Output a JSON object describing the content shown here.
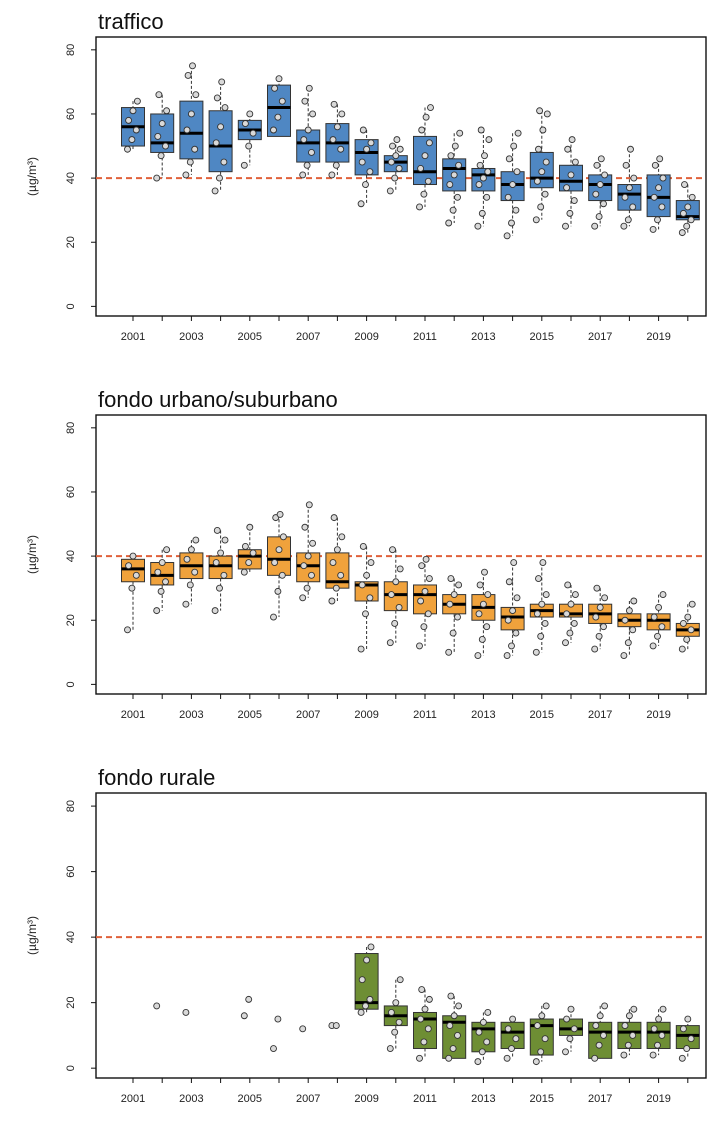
{
  "chart_data": [
    {
      "type": "box",
      "title": "traffico",
      "ylabel": "(µg/m³)",
      "yticks": [
        0,
        20,
        40,
        60,
        80
      ],
      "ylim": [
        -3,
        84
      ],
      "x_tick_labels": [
        "2001",
        "2003",
        "2005",
        "2007",
        "2009",
        "2011",
        "2013",
        "2015",
        "2017",
        "2019"
      ],
      "limit_line": 40,
      "colors": {
        "box": "#4f87c3",
        "limit": "#e0603a"
      },
      "categories": [
        2001,
        2002,
        2003,
        2004,
        2005,
        2006,
        2007,
        2008,
        2009,
        2010,
        2011,
        2012,
        2013,
        2014,
        2015,
        2016,
        2017,
        2018,
        2019,
        2020
      ],
      "boxes": [
        {
          "q1": 50,
          "median": 56,
          "q3": 62,
          "points": [
            49,
            52,
            55,
            58,
            61,
            64
          ]
        },
        {
          "q1": 48,
          "median": 51,
          "q3": 60,
          "points": [
            40,
            47,
            50,
            53,
            57,
            61,
            66
          ]
        },
        {
          "q1": 46,
          "median": 54,
          "q3": 64,
          "points": [
            41,
            45,
            49,
            55,
            60,
            66,
            72,
            75
          ]
        },
        {
          "q1": 42,
          "median": 50,
          "q3": 61,
          "points": [
            36,
            40,
            45,
            51,
            56,
            62,
            65,
            70
          ]
        },
        {
          "q1": 52,
          "median": 55,
          "q3": 58,
          "points": [
            44,
            50,
            54,
            57,
            60
          ]
        },
        {
          "q1": 53,
          "median": 62,
          "q3": 69,
          "points": [
            55,
            59,
            64,
            68,
            71
          ]
        },
        {
          "q1": 45,
          "median": 51,
          "q3": 55,
          "points": [
            41,
            44,
            48,
            52,
            55,
            60,
            64,
            68
          ]
        },
        {
          "q1": 45,
          "median": 51,
          "q3": 57,
          "points": [
            41,
            44,
            49,
            52,
            56,
            60,
            63
          ]
        },
        {
          "q1": 41,
          "median": 48,
          "q3": 52,
          "points": [
            32,
            38,
            42,
            45,
            49,
            51,
            55
          ]
        },
        {
          "q1": 42,
          "median": 45,
          "q3": 47,
          "points": [
            36,
            40,
            43,
            45,
            47,
            49,
            50,
            52
          ]
        },
        {
          "q1": 38,
          "median": 42,
          "q3": 53,
          "points": [
            31,
            35,
            39,
            43,
            47,
            51,
            55,
            59,
            62
          ]
        },
        {
          "q1": 36,
          "median": 43,
          "q3": 46,
          "points": [
            26,
            30,
            34,
            38,
            41,
            44,
            47,
            50,
            54
          ]
        },
        {
          "q1": 36,
          "median": 41,
          "q3": 43,
          "points": [
            25,
            29,
            34,
            38,
            40,
            42,
            44,
            47,
            52,
            55
          ]
        },
        {
          "q1": 33,
          "median": 38,
          "q3": 42,
          "points": [
            22,
            26,
            30,
            34,
            38,
            42,
            46,
            50,
            54
          ]
        },
        {
          "q1": 37,
          "median": 40,
          "q3": 48,
          "points": [
            27,
            31,
            35,
            39,
            42,
            45,
            49,
            55,
            60,
            61
          ]
        },
        {
          "q1": 36,
          "median": 39,
          "q3": 44,
          "points": [
            25,
            29,
            33,
            37,
            41,
            45,
            49,
            52
          ]
        },
        {
          "q1": 33,
          "median": 38,
          "q3": 41,
          "points": [
            25,
            28,
            32,
            35,
            38,
            41,
            44,
            46
          ]
        },
        {
          "q1": 30,
          "median": 35,
          "q3": 38,
          "points": [
            25,
            27,
            31,
            34,
            37,
            40,
            44,
            49
          ]
        },
        {
          "q1": 28,
          "median": 34,
          "q3": 41,
          "points": [
            24,
            27,
            31,
            34,
            37,
            40,
            44,
            46
          ]
        },
        {
          "q1": 27,
          "median": 28,
          "q3": 33,
          "points": [
            23,
            25,
            27,
            29,
            31,
            34,
            38
          ]
        }
      ]
    },
    {
      "type": "box",
      "title": "fondo urbano/suburbano",
      "ylabel": "(µg/m³)",
      "yticks": [
        0,
        20,
        40,
        60,
        80
      ],
      "ylim": [
        -3,
        84
      ],
      "x_tick_labels": [
        "2001",
        "2003",
        "2005",
        "2007",
        "2009",
        "2011",
        "2013",
        "2015",
        "2017",
        "2019"
      ],
      "limit_line": 40,
      "colors": {
        "box": "#f0a23c",
        "limit": "#e0603a"
      },
      "categories": [
        2001,
        2002,
        2003,
        2004,
        2005,
        2006,
        2007,
        2008,
        2009,
        2010,
        2011,
        2012,
        2013,
        2014,
        2015,
        2016,
        2017,
        2018,
        2019,
        2020
      ],
      "boxes": [
        {
          "q1": 32,
          "median": 36,
          "q3": 39,
          "points": [
            17,
            30,
            34,
            37,
            40
          ]
        },
        {
          "q1": 31,
          "median": 34,
          "q3": 38,
          "points": [
            23,
            29,
            32,
            35,
            38,
            42
          ]
        },
        {
          "q1": 33,
          "median": 37,
          "q3": 41,
          "points": [
            25,
            31,
            35,
            39,
            42,
            45
          ]
        },
        {
          "q1": 33,
          "median": 37,
          "q3": 40,
          "points": [
            23,
            30,
            34,
            38,
            41,
            45,
            48
          ]
        },
        {
          "q1": 36,
          "median": 40,
          "q3": 42,
          "points": [
            35,
            38,
            41,
            43,
            49
          ]
        },
        {
          "q1": 34,
          "median": 39,
          "q3": 46,
          "points": [
            21,
            29,
            34,
            38,
            42,
            46,
            52,
            53
          ]
        },
        {
          "q1": 32,
          "median": 37,
          "q3": 41,
          "points": [
            27,
            30,
            34,
            37,
            40,
            44,
            49,
            56
          ]
        },
        {
          "q1": 30,
          "median": 32,
          "q3": 41,
          "points": [
            26,
            30,
            34,
            38,
            42,
            46,
            52
          ]
        },
        {
          "q1": 26,
          "median": 31,
          "q3": 32,
          "points": [
            11,
            22,
            27,
            31,
            34,
            38,
            43
          ]
        },
        {
          "q1": 23,
          "median": 28,
          "q3": 32,
          "points": [
            13,
            19,
            24,
            28,
            32,
            36,
            42
          ]
        },
        {
          "q1": 22,
          "median": 28,
          "q3": 31,
          "points": [
            12,
            18,
            22,
            26,
            29,
            33,
            37,
            39
          ]
        },
        {
          "q1": 22,
          "median": 25,
          "q3": 28,
          "points": [
            10,
            16,
            21,
            25,
            28,
            31,
            33
          ]
        },
        {
          "q1": 20,
          "median": 24,
          "q3": 28,
          "points": [
            9,
            14,
            18,
            22,
            25,
            28,
            31,
            35
          ]
        },
        {
          "q1": 17,
          "median": 21,
          "q3": 24,
          "points": [
            9,
            12,
            16,
            20,
            23,
            27,
            32,
            38
          ]
        },
        {
          "q1": 21,
          "median": 23,
          "q3": 25,
          "points": [
            10,
            15,
            19,
            22,
            25,
            28,
            33,
            38
          ]
        },
        {
          "q1": 21,
          "median": 22,
          "q3": 25,
          "points": [
            13,
            16,
            19,
            22,
            25,
            28,
            31
          ]
        },
        {
          "q1": 19,
          "median": 22,
          "q3": 25,
          "points": [
            11,
            15,
            18,
            21,
            24,
            27,
            30
          ]
        },
        {
          "q1": 18,
          "median": 20,
          "q3": 22,
          "points": [
            9,
            13,
            17,
            20,
            23,
            26
          ]
        },
        {
          "q1": 17,
          "median": 20,
          "q3": 22,
          "points": [
            12,
            15,
            18,
            21,
            24,
            28
          ]
        },
        {
          "q1": 15,
          "median": 17,
          "q3": 19,
          "points": [
            11,
            14,
            17,
            19,
            21,
            25
          ]
        }
      ]
    },
    {
      "type": "box",
      "title": "fondo rurale",
      "ylabel": "(µg/m³)",
      "yticks": [
        0,
        20,
        40,
        60,
        80
      ],
      "ylim": [
        -3,
        84
      ],
      "x_tick_labels": [
        "2001",
        "2003",
        "2005",
        "2007",
        "2009",
        "2011",
        "2013",
        "2015",
        "2017",
        "2019"
      ],
      "limit_line": 40,
      "colors": {
        "box": "#6e8e34",
        "limit": "#e0603a"
      },
      "categories": [
        2001,
        2002,
        2003,
        2004,
        2005,
        2006,
        2007,
        2008,
        2009,
        2010,
        2011,
        2012,
        2013,
        2014,
        2015,
        2016,
        2017,
        2018,
        2019,
        2020
      ],
      "boxes": [
        null,
        {
          "points": [
            19
          ]
        },
        {
          "points": [
            17
          ]
        },
        null,
        {
          "points": [
            16,
            21
          ]
        },
        {
          "points": [
            6,
            15
          ]
        },
        {
          "points": [
            12
          ]
        },
        {
          "points": [
            13,
            13
          ]
        },
        {
          "q1": 18,
          "median": 20,
          "q3": 35,
          "points": [
            17,
            19,
            21,
            27,
            33,
            37
          ]
        },
        {
          "q1": 13,
          "median": 16,
          "q3": 19,
          "points": [
            6,
            11,
            14,
            17,
            20,
            27
          ]
        },
        {
          "q1": 6,
          "median": 15,
          "q3": 17,
          "points": [
            3,
            8,
            12,
            15,
            18,
            21,
            24
          ]
        },
        {
          "q1": 3,
          "median": 14,
          "q3": 16,
          "points": [
            3,
            6,
            10,
            13,
            16,
            19,
            22
          ]
        },
        {
          "q1": 5,
          "median": 12,
          "q3": 14,
          "points": [
            2,
            5,
            8,
            11,
            14,
            17
          ]
        },
        {
          "q1": 6,
          "median": 11,
          "q3": 14,
          "points": [
            3,
            6,
            9,
            12,
            15
          ]
        },
        {
          "q1": 4,
          "median": 13,
          "q3": 15,
          "points": [
            2,
            5,
            9,
            13,
            16,
            19
          ]
        },
        {
          "q1": 10,
          "median": 12,
          "q3": 15,
          "points": [
            5,
            9,
            12,
            15,
            18
          ]
        },
        {
          "q1": 3,
          "median": 11,
          "q3": 14,
          "points": [
            3,
            7,
            10,
            13,
            16,
            19
          ]
        },
        {
          "q1": 6,
          "median": 11,
          "q3": 14,
          "points": [
            4,
            7,
            10,
            13,
            16,
            18
          ]
        },
        {
          "q1": 6,
          "median": 11,
          "q3": 14,
          "points": [
            4,
            7,
            10,
            12,
            15,
            18
          ]
        },
        {
          "q1": 6,
          "median": 10,
          "q3": 13,
          "points": [
            3,
            6,
            9,
            12,
            15
          ]
        }
      ]
    }
  ]
}
